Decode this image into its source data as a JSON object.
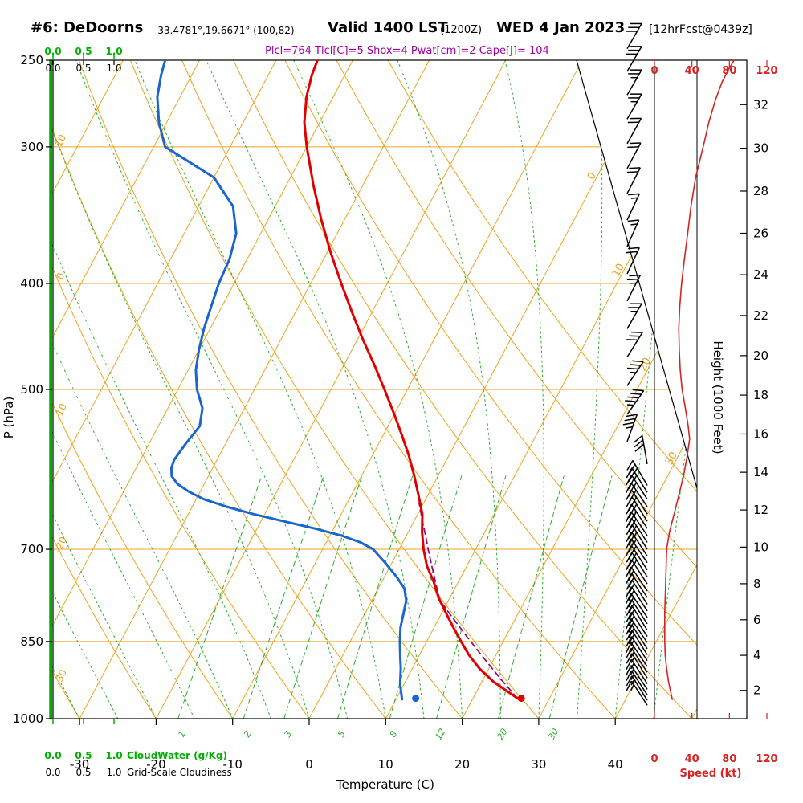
{
  "header": {
    "station": "#6: DeDoorns",
    "coords": "-33.4781°,19.6671° (100,82)",
    "valid_main": "Valid 1400 LST",
    "valid_z": "(1200Z)",
    "valid_date": "WED 4 Jan 2023",
    "fcst": "[12hrFcst@0439z]",
    "indices": "Plcl=764 Tlcl[C]=5 Shox=4 Pwat[cm]=2 Cape[J]= 104"
  },
  "axes": {
    "pressure_label": "P (hPa)",
    "pressure_ticks": [
      250,
      300,
      400,
      500,
      700,
      850,
      1000
    ],
    "temperature_label": "Temperature (C)",
    "temperature_ticks": [
      -30,
      -20,
      -10,
      0,
      10,
      20,
      30,
      40
    ],
    "height_label": "Height (1000 Feet)",
    "height_ticks": [
      2,
      4,
      6,
      8,
      10,
      12,
      14,
      16,
      18,
      20,
      22,
      24,
      26,
      28,
      30,
      32
    ],
    "speed_label": "Speed (kt)",
    "speed_ticks": [
      0,
      40,
      80,
      120
    ],
    "cloudwater_label": "CloudWater (g/Kg)",
    "cloudiness_label": "Grid-Scale Cloudiness",
    "cloud_scale_ticks": [
      "0.0",
      "0.5",
      "1.0"
    ],
    "mixing_ratio_values": [
      1,
      2,
      3,
      5,
      8,
      12,
      20,
      30
    ],
    "dry_adiabat_labels": [
      10,
      0,
      -10,
      -20,
      -30
    ],
    "isotherm_edge_labels": [
      0,
      10,
      20,
      30
    ]
  },
  "chart_data": {
    "type": "line",
    "subtype": "skew-t log-p sounding",
    "pressure_range_hPa": [
      1000,
      250
    ],
    "temperature_axis_C": [
      -40,
      50
    ],
    "height_axis_kft": [
      2,
      32
    ],
    "speed_axis_kt": [
      0,
      120
    ],
    "temperature_profile": [
      [
        958,
        25.8
      ],
      [
        925,
        21.5
      ],
      [
        900,
        18.8
      ],
      [
        875,
        16.5
      ],
      [
        850,
        14.5
      ],
      [
        825,
        12.5
      ],
      [
        800,
        10.5
      ],
      [
        775,
        8.5
      ],
      [
        750,
        6.8
      ],
      [
        725,
        4.8
      ],
      [
        700,
        3.2
      ],
      [
        675,
        1.8
      ],
      [
        650,
        0.6
      ],
      [
        625,
        -1.2
      ],
      [
        600,
        -3.1
      ],
      [
        575,
        -5.2
      ],
      [
        550,
        -7.6
      ],
      [
        525,
        -10.2
      ],
      [
        500,
        -13.0
      ],
      [
        475,
        -16.0
      ],
      [
        450,
        -19.3
      ],
      [
        425,
        -22.6
      ],
      [
        400,
        -26.0
      ],
      [
        375,
        -29.5
      ],
      [
        350,
        -33.0
      ],
      [
        325,
        -36.5
      ],
      [
        300,
        -40.0
      ],
      [
        285,
        -42.0
      ],
      [
        270,
        -43.5
      ],
      [
        258,
        -44.3
      ],
      [
        250,
        -44.6
      ]
    ],
    "dewpoint_profile": [
      [
        960,
        10.8
      ],
      [
        930,
        9.5
      ],
      [
        900,
        8.5
      ],
      [
        875,
        7.5
      ],
      [
        850,
        6.5
      ],
      [
        825,
        5.6
      ],
      [
        800,
        5.0
      ],
      [
        780,
        4.5
      ],
      [
        760,
        3.4
      ],
      [
        740,
        1.4
      ],
      [
        720,
        -0.9
      ],
      [
        700,
        -3.4
      ],
      [
        690,
        -5.5
      ],
      [
        680,
        -8.5
      ],
      [
        670,
        -12.5
      ],
      [
        660,
        -17.0
      ],
      [
        650,
        -21.5
      ],
      [
        640,
        -25.5
      ],
      [
        630,
        -29.0
      ],
      [
        620,
        -31.5
      ],
      [
        610,
        -33.5
      ],
      [
        600,
        -34.8
      ],
      [
        590,
        -35.4
      ],
      [
        580,
        -35.6
      ],
      [
        560,
        -35.2
      ],
      [
        540,
        -34.6
      ],
      [
        520,
        -35.5
      ],
      [
        500,
        -37.5
      ],
      [
        480,
        -39.0
      ],
      [
        460,
        -40.0
      ],
      [
        440,
        -40.8
      ],
      [
        420,
        -41.4
      ],
      [
        400,
        -42.0
      ],
      [
        380,
        -42.3
      ],
      [
        360,
        -43.2
      ],
      [
        340,
        -45.5
      ],
      [
        320,
        -50.0
      ],
      [
        300,
        -58.5
      ],
      [
        285,
        -61.0
      ],
      [
        270,
        -63.0
      ],
      [
        258,
        -64.0
      ],
      [
        250,
        -64.5
      ]
    ],
    "parcel_path": [
      [
        958,
        25.8
      ],
      [
        920,
        22.3
      ],
      [
        880,
        18.6
      ],
      [
        840,
        14.8
      ],
      [
        800,
        10.9
      ],
      [
        780,
        8.9
      ],
      [
        764,
        7.9
      ],
      [
        740,
        6.4
      ],
      [
        720,
        5.1
      ],
      [
        700,
        3.8
      ],
      [
        680,
        2.5
      ],
      [
        660,
        1.1
      ],
      [
        645,
        0.1
      ],
      [
        635,
        -0.6
      ]
    ],
    "surface_temp_point": {
      "p": 958,
      "t": 26.3
    },
    "surface_dewp_point": {
      "p": 958,
      "t": 12.5
    },
    "wind_speed_profile": [
      [
        960,
        19
      ],
      [
        925,
        15
      ],
      [
        900,
        13
      ],
      [
        875,
        11.5
      ],
      [
        850,
        11
      ],
      [
        800,
        11
      ],
      [
        750,
        12
      ],
      [
        700,
        13
      ],
      [
        675,
        16
      ],
      [
        650,
        21
      ],
      [
        625,
        26
      ],
      [
        600,
        31
      ],
      [
        575,
        35
      ],
      [
        555,
        37.5
      ],
      [
        540,
        36
      ],
      [
        520,
        33
      ],
      [
        500,
        29.5
      ],
      [
        480,
        27.5
      ],
      [
        460,
        26.5
      ],
      [
        440,
        26
      ],
      [
        420,
        27
      ],
      [
        400,
        29
      ],
      [
        380,
        32
      ],
      [
        360,
        35.5
      ],
      [
        340,
        39
      ],
      [
        320,
        44
      ],
      [
        300,
        52
      ],
      [
        285,
        58
      ],
      [
        272,
        65
      ],
      [
        262,
        72
      ],
      [
        255,
        79
      ],
      [
        250,
        85
      ]
    ],
    "wind_barbs": [
      [
        244,
        30,
        30
      ],
      [
        256,
        30,
        30
      ],
      [
        269,
        30,
        25
      ],
      [
        283,
        30,
        25
      ],
      [
        298,
        29,
        20
      ],
      [
        314,
        28,
        20
      ],
      [
        331,
        27,
        20
      ],
      [
        350,
        25,
        15
      ],
      [
        370,
        24,
        15
      ],
      [
        392,
        25,
        20
      ],
      [
        415,
        27,
        25
      ],
      [
        440,
        30,
        25
      ],
      [
        467,
        32,
        30
      ],
      [
        496,
        34,
        35
      ],
      [
        527,
        35,
        45
      ],
      [
        558,
        20,
        35
      ],
      [
        585,
        -10,
        30
      ],
      [
        612,
        -30,
        25
      ],
      [
        621,
        -32,
        25
      ],
      [
        630,
        -33,
        25
      ],
      [
        640,
        -34,
        25
      ],
      [
        650,
        -33,
        25
      ],
      [
        660,
        -32,
        25
      ],
      [
        670,
        -33,
        25
      ],
      [
        680,
        -34,
        25
      ],
      [
        690,
        -33,
        25
      ],
      [
        700,
        -32,
        25
      ],
      [
        710,
        -33,
        25
      ],
      [
        720,
        -34,
        25
      ],
      [
        731,
        -33,
        25
      ],
      [
        742,
        -32,
        25
      ],
      [
        753,
        -33,
        20
      ],
      [
        764,
        -34,
        20
      ],
      [
        775,
        -33,
        20
      ],
      [
        786,
        -32,
        20
      ],
      [
        797,
        -33,
        20
      ],
      [
        808,
        -34,
        20
      ],
      [
        819,
        -33,
        20
      ],
      [
        830,
        -32,
        20
      ],
      [
        841,
        -33,
        20
      ],
      [
        852,
        -34,
        20
      ],
      [
        863,
        -33,
        18
      ],
      [
        874,
        -32,
        18
      ],
      [
        885,
        -33,
        15
      ],
      [
        896,
        -34,
        15
      ],
      [
        907,
        -33,
        15
      ],
      [
        918,
        -32,
        15
      ],
      [
        929,
        -33,
        15
      ],
      [
        940,
        -34,
        15
      ],
      [
        951,
        -33,
        15
      ],
      [
        962,
        -32,
        15
      ],
      [
        972,
        -33,
        15
      ]
    ]
  },
  "colors": {
    "grid_orange": "#eda320",
    "grid_green": "#2fae2f",
    "axis_green": "#00b000",
    "temp_red": "#e00000",
    "dewp_blue": "#1a66cc",
    "parcel_purple": "#8a0f8a",
    "speed_red": "#d42424",
    "indices_purple": "#a000a0",
    "black": "#000000"
  }
}
